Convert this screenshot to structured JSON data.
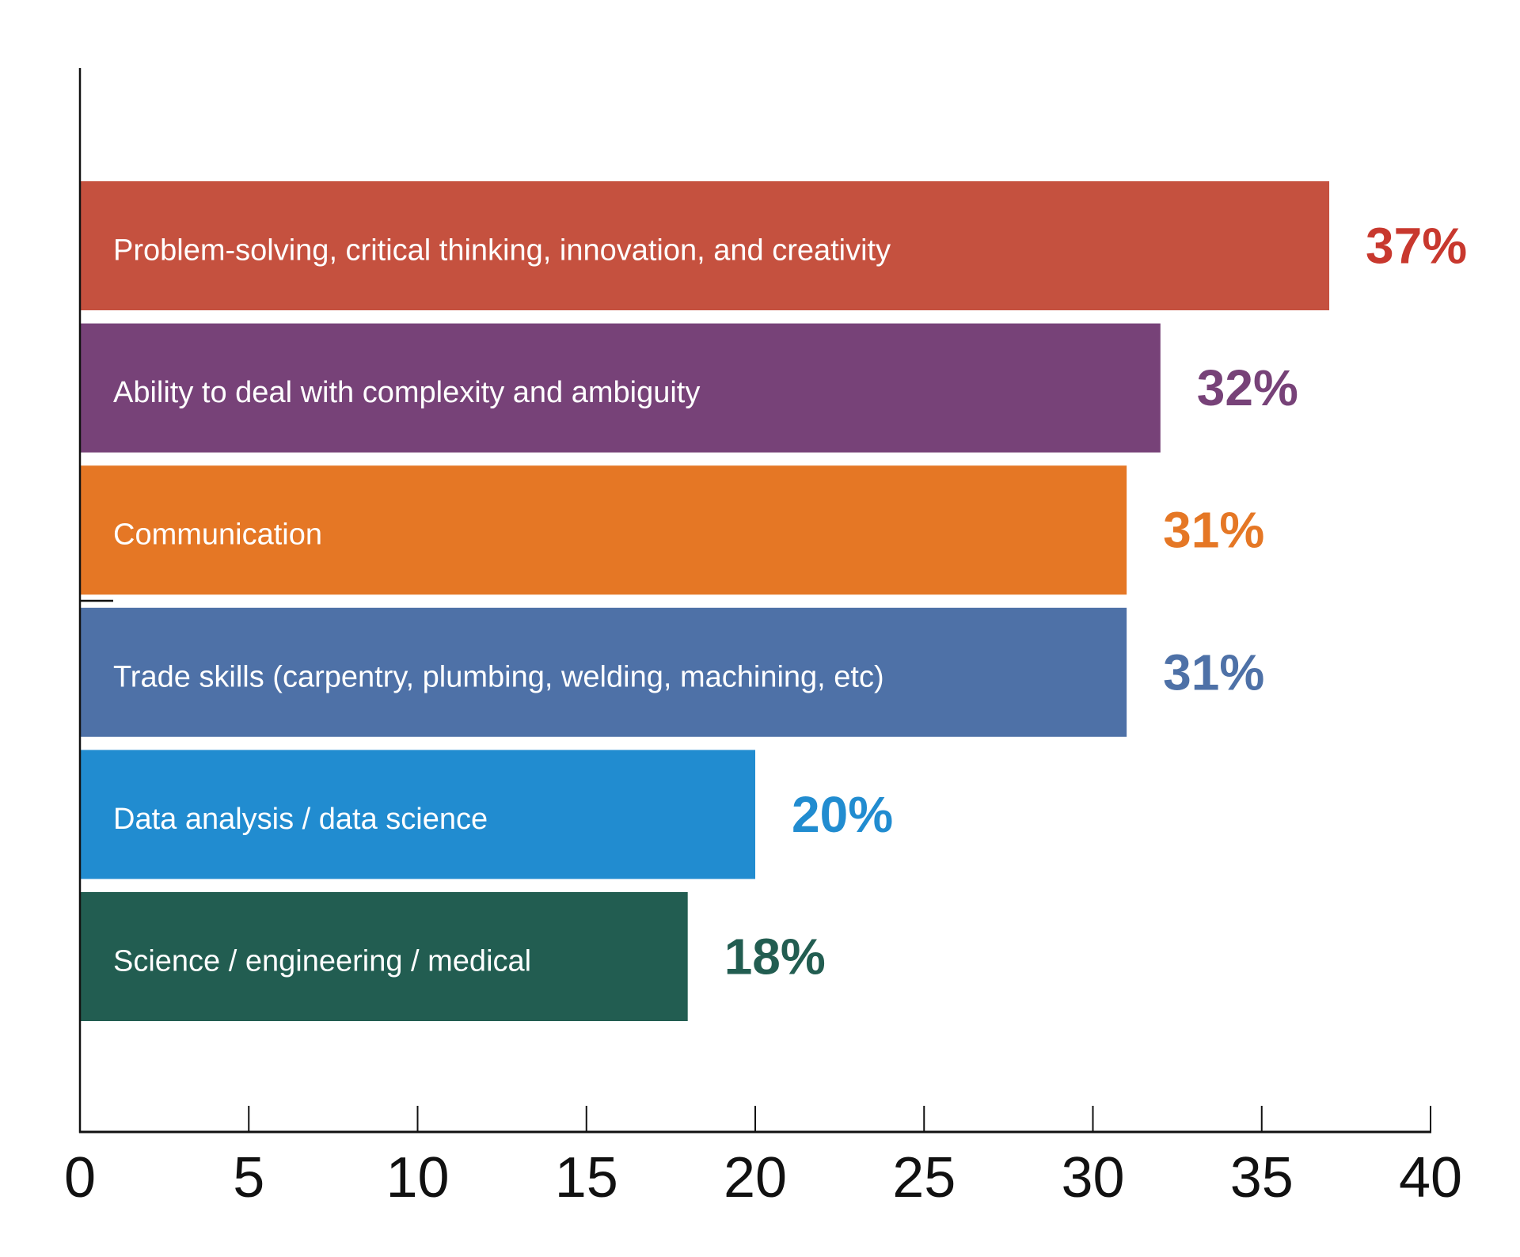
{
  "chart_data": {
    "type": "bar",
    "orientation": "horizontal",
    "title": "",
    "xlabel": "",
    "ylabel": "",
    "xlim": [
      0,
      40
    ],
    "x_ticks": [
      0,
      5,
      10,
      15,
      20,
      25,
      30,
      35,
      40
    ],
    "x_tick_labels": [
      "0",
      "5",
      "10",
      "15",
      "20",
      "25",
      "30",
      "35",
      "40"
    ],
    "grid": false,
    "categories": [
      "Problem-solving, critical thinking, innovation, and creativity",
      "Ability to deal with complexity and ambiguity",
      "Communication",
      "Trade skills (carpentry, plumbing, welding, machining, etc)",
      "Data analysis / data science",
      "Science / engineering / medical"
    ],
    "values": [
      37,
      32,
      31,
      31,
      20,
      18
    ],
    "value_labels": [
      "37%",
      "32%",
      "31%",
      "31%",
      "20%",
      "18%"
    ],
    "bar_colors": [
      "#C5513F",
      "#774278",
      "#E57725",
      "#4E71A7",
      "#218CD0",
      "#225D51"
    ],
    "value_label_colors": [
      "#C8382E",
      "#774278",
      "#E57725",
      "#4E71A7",
      "#218CD0",
      "#225D51"
    ]
  }
}
